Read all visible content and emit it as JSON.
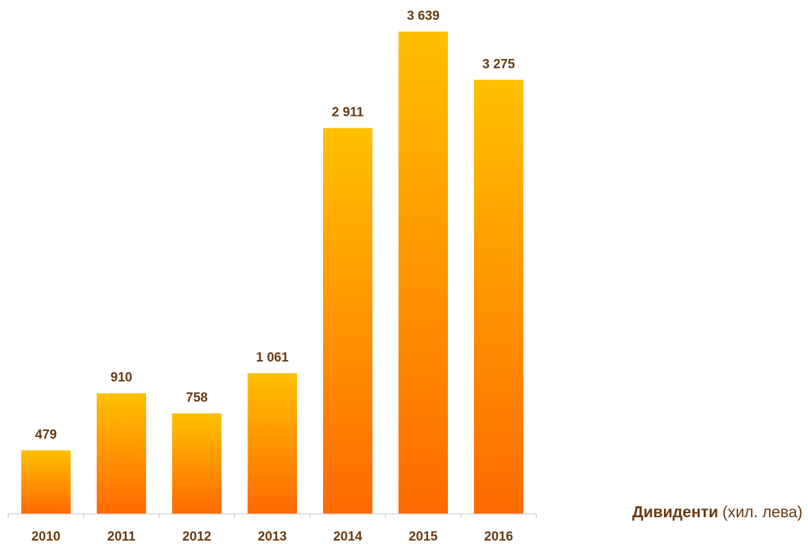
{
  "chart_data": {
    "type": "bar",
    "title": "Дивиденти",
    "subtitle": "(хил. лева)",
    "categories": [
      "2010",
      "2011",
      "2012",
      "2013",
      "2014",
      "2015",
      "2016"
    ],
    "values": [
      479,
      910,
      758,
      1061,
      2911,
      3639,
      3275
    ],
    "value_labels": [
      "479",
      "910",
      "758",
      "1 061",
      "2 911",
      "3 639",
      "3 275"
    ],
    "color": [
      "#ffc000",
      "#ff6a00"
    ],
    "label_color": "#6b3a12"
  }
}
